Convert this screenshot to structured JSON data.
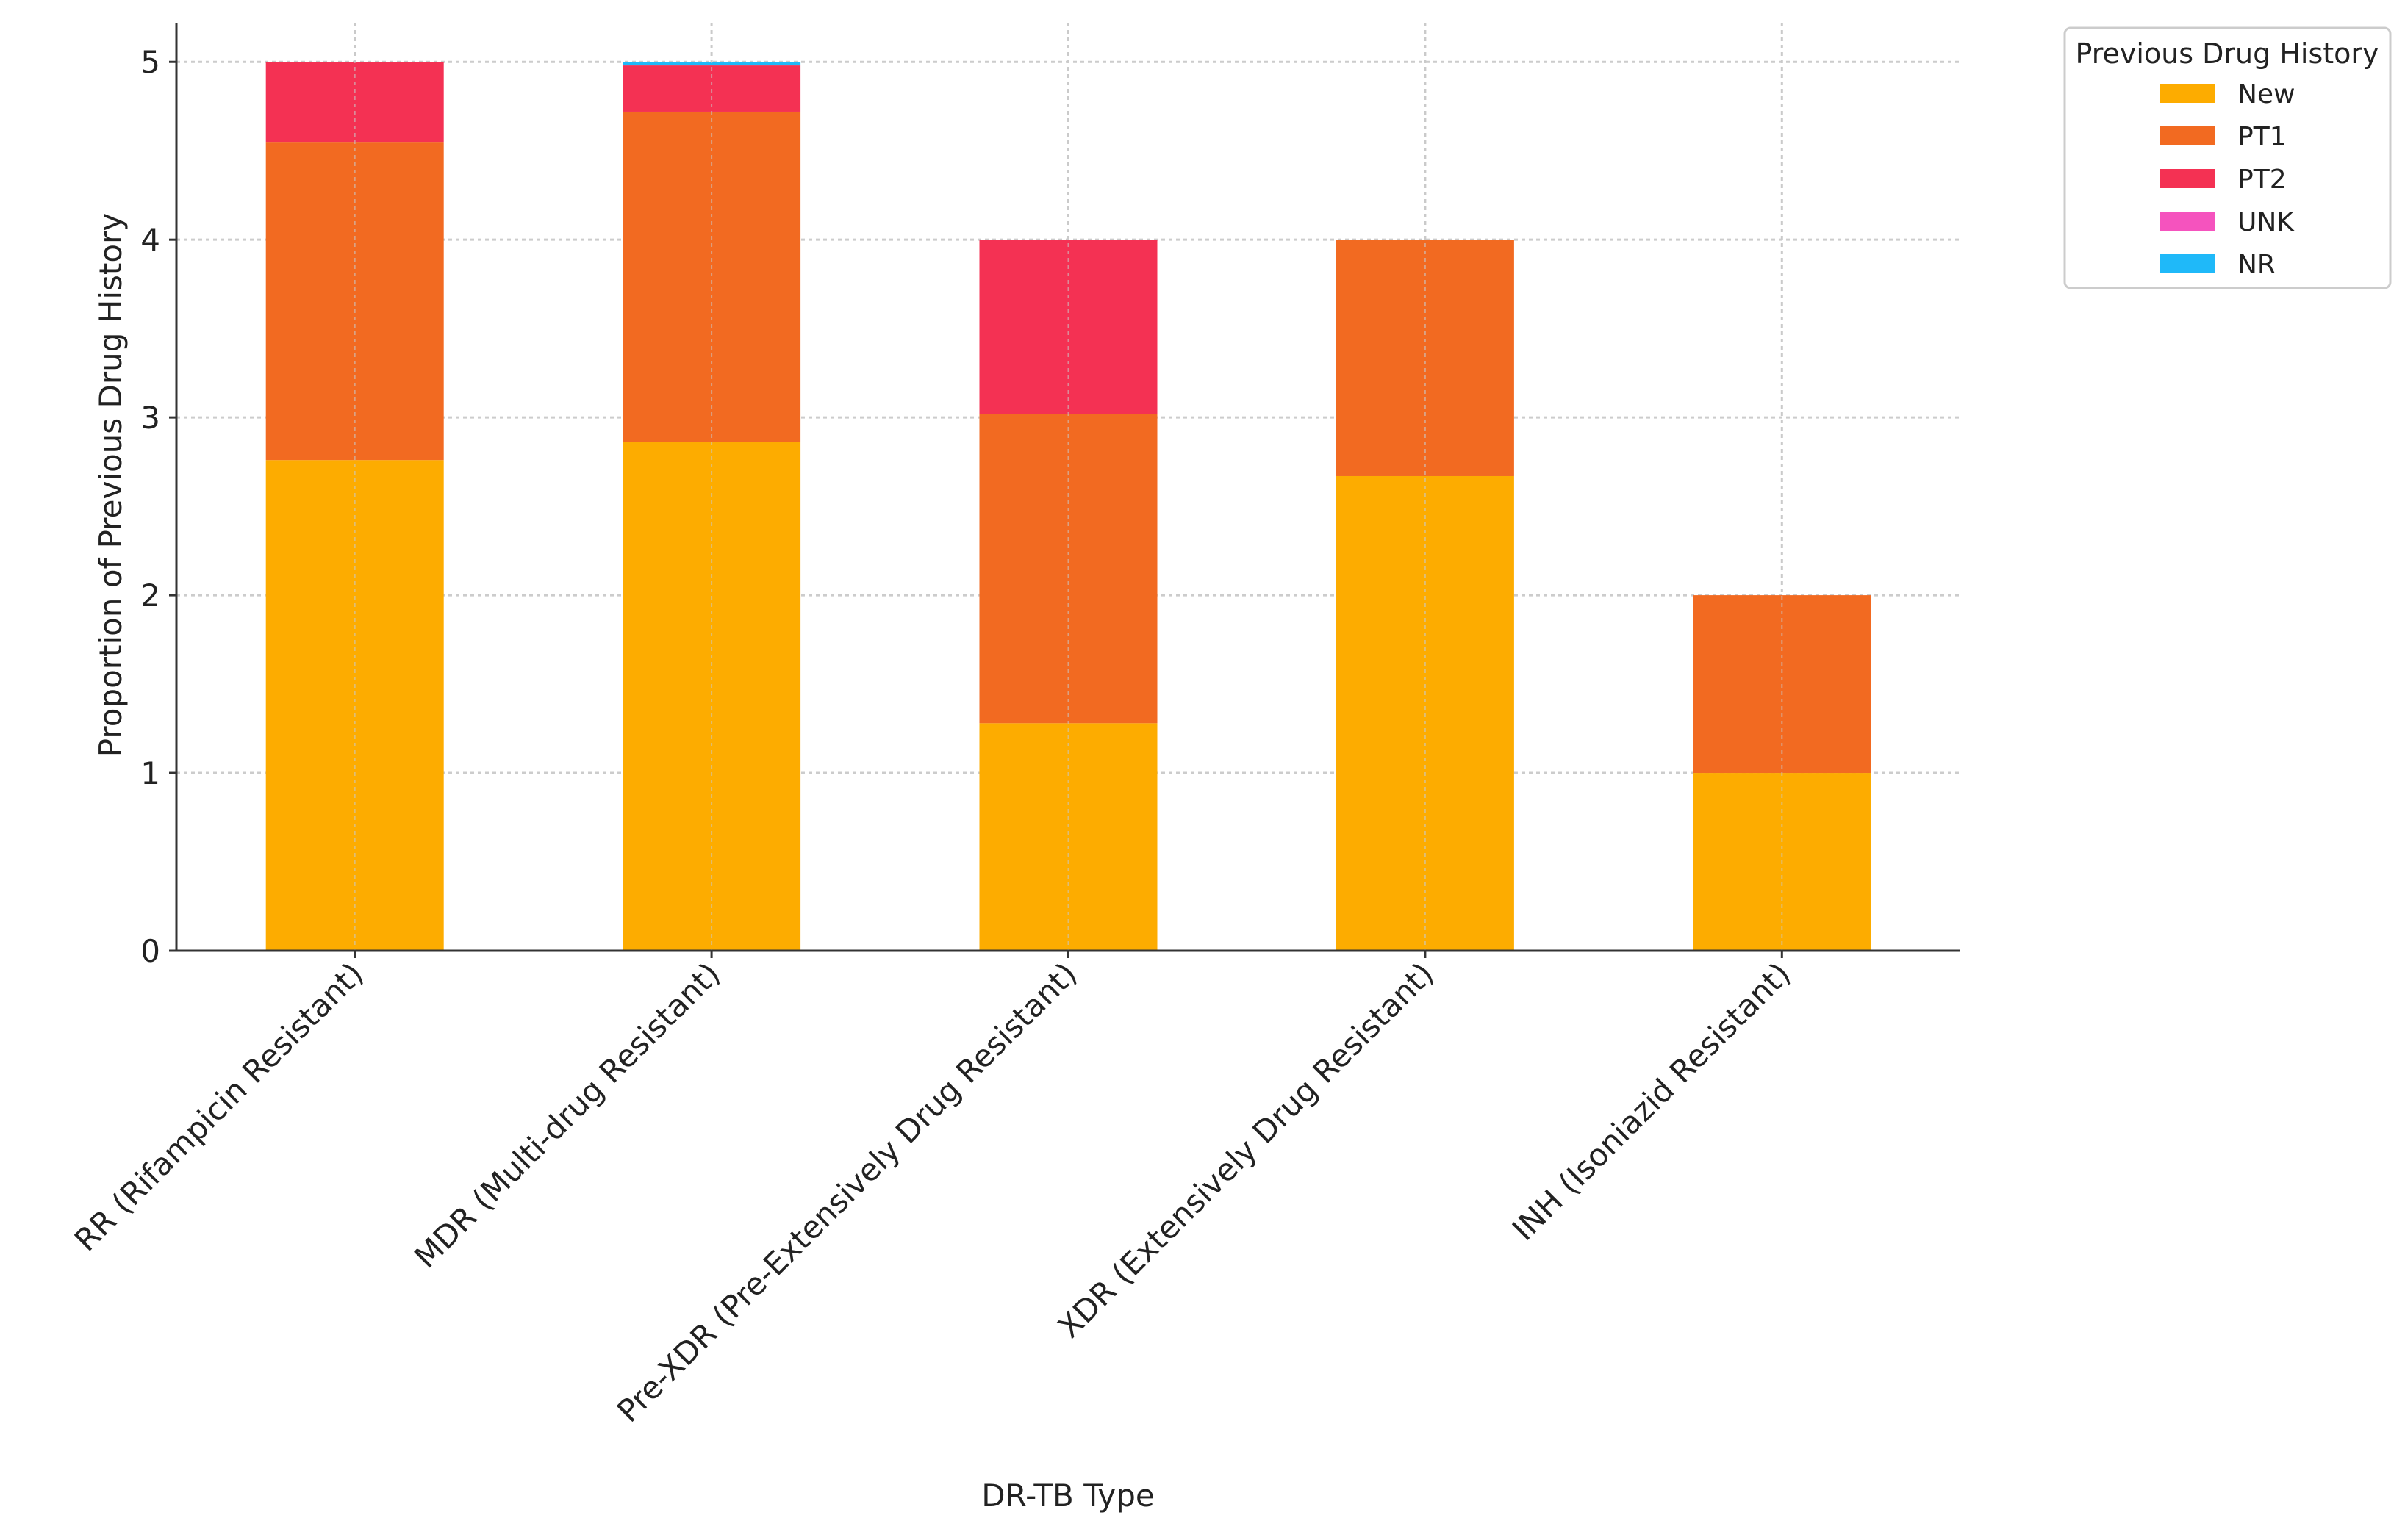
{
  "chart_data": {
    "type": "bar",
    "stacked": true,
    "title": "",
    "xlabel": "DR-TB Type",
    "ylabel": "Proportion of Previous Drug History",
    "ylim": [
      0,
      5.22
    ],
    "yticks": [
      0,
      1,
      2,
      3,
      4,
      5
    ],
    "grid": true,
    "categories": [
      "RR (Rifampicin Resistant)",
      "MDR (Multi-drug Resistant)",
      "Pre-XDR (Pre-Extensively Drug Resistant)",
      "XDR (Extensively Drug Resistant)",
      "INH (Isoniazid Resistant)"
    ],
    "series": [
      {
        "name": "New",
        "color": "#FDAC00",
        "values": [
          2.76,
          2.86,
          1.28,
          2.67,
          1.0
        ]
      },
      {
        "name": "PT1",
        "color": "#F26A21",
        "values": [
          1.79,
          1.86,
          1.74,
          1.33,
          1.0
        ]
      },
      {
        "name": "PT2",
        "color": "#F43153",
        "values": [
          0.45,
          0.26,
          0.98,
          0,
          0
        ]
      },
      {
        "name": "UNK",
        "color": "#F553BE",
        "values": [
          0,
          0,
          0,
          0,
          0
        ]
      },
      {
        "name": "NR",
        "color": "#1FB9F9",
        "values": [
          0,
          0.02,
          0,
          0,
          0
        ]
      }
    ],
    "legend": {
      "title": "Previous Drug History",
      "placement": "upper-right-outside"
    }
  }
}
